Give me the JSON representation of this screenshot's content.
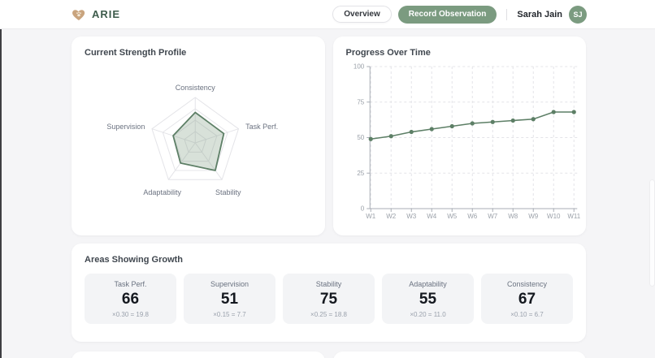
{
  "header": {
    "brand": "ARIE",
    "nav": {
      "overview_label": "Overview",
      "record_observation_label": "Record Observation"
    },
    "user": {
      "name": "Sarah Jain",
      "initials": "SJ"
    }
  },
  "chart_data": [
    {
      "type": "radar",
      "title": "Current Strength Profile",
      "categories": [
        "Consistency",
        "Task Perf.",
        "Stability",
        "Adaptability",
        "Supervision"
      ],
      "values": [
        67,
        66,
        75,
        55,
        51
      ],
      "max": 100,
      "grid_rings": [
        25,
        50,
        75,
        100
      ],
      "legend": "none"
    },
    {
      "type": "line",
      "title": "Progress Over Time",
      "x": [
        "W1",
        "W2",
        "W3",
        "W4",
        "W5",
        "W6",
        "W7",
        "W8",
        "W9",
        "W10",
        "W11"
      ],
      "values": [
        49,
        51,
        54,
        56,
        58,
        60,
        61,
        62,
        63,
        68,
        68
      ],
      "ylim": [
        0,
        100
      ],
      "yticks": [
        0,
        25,
        50,
        75,
        100
      ],
      "grid": "dashed",
      "legend": "none"
    }
  ],
  "growth_section": {
    "title": "Areas Showing Growth",
    "cards": [
      {
        "label": "Task Perf.",
        "value": "66",
        "formula": "×0.30 = 19.8"
      },
      {
        "label": "Supervision",
        "value": "51",
        "formula": "×0.15 = 7.7"
      },
      {
        "label": "Stability",
        "value": "75",
        "formula": "×0.25 = 18.8"
      },
      {
        "label": "Adaptability",
        "value": "55",
        "formula": "×0.20 = 11.0"
      },
      {
        "label": "Consistency",
        "value": "67",
        "formula": "×0.10 = 6.7"
      }
    ]
  },
  "colors": {
    "accent_green": "#7b9b80",
    "chart_green": "#5d7f66",
    "radar_fill": "rgba(125,156,130,0.30)",
    "grid_gray": "#e4e4e8",
    "axis_gray": "#a8adb5",
    "brand_heart": "#c9a47e",
    "brand_text": "#3e5c4c"
  }
}
